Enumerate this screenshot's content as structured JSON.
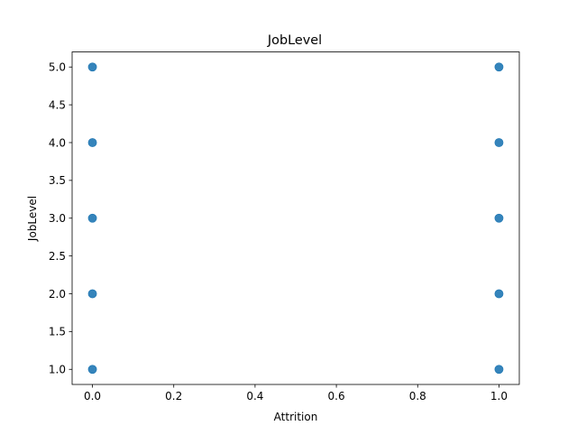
{
  "chart_data": {
    "type": "scatter",
    "title": "JobLevel",
    "xlabel": "Attrition",
    "ylabel": "JobLevel",
    "xlim": [
      -0.05,
      1.05
    ],
    "ylim": [
      0.8,
      5.2
    ],
    "xticks": [
      "0.0",
      "0.2",
      "0.4",
      "0.6",
      "0.8",
      "1.0"
    ],
    "xtick_values": [
      0.0,
      0.2,
      0.4,
      0.6,
      0.8,
      1.0
    ],
    "yticks": [
      "1.0",
      "1.5",
      "2.0",
      "2.5",
      "3.0",
      "3.5",
      "4.0",
      "4.5",
      "5.0"
    ],
    "ytick_values": [
      1.0,
      1.5,
      2.0,
      2.5,
      3.0,
      3.5,
      4.0,
      4.5,
      5.0
    ],
    "grid": false,
    "legend": "none",
    "color": "#1f77b4",
    "points": [
      {
        "x": 0,
        "y": 1
      },
      {
        "x": 0,
        "y": 2
      },
      {
        "x": 0,
        "y": 3
      },
      {
        "x": 0,
        "y": 4
      },
      {
        "x": 0,
        "y": 5
      },
      {
        "x": 1,
        "y": 1
      },
      {
        "x": 1,
        "y": 2
      },
      {
        "x": 1,
        "y": 3
      },
      {
        "x": 1,
        "y": 4
      },
      {
        "x": 1,
        "y": 5
      }
    ]
  }
}
